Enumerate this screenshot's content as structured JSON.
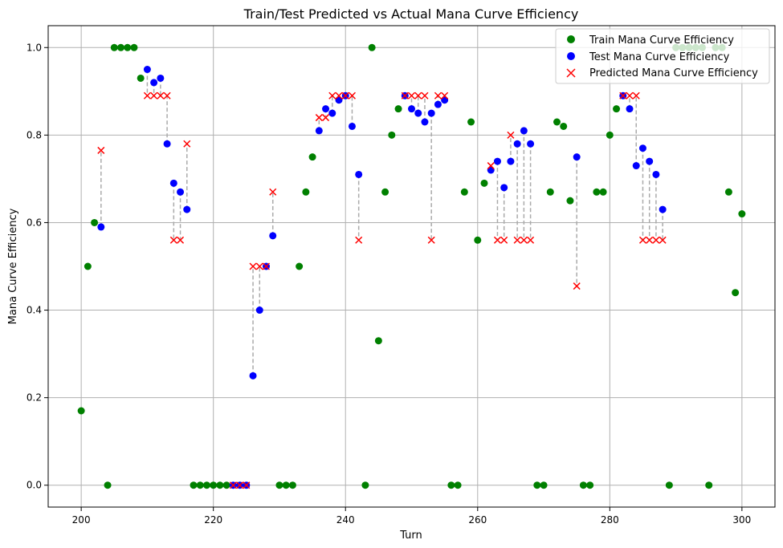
{
  "chart_data": {
    "type": "scatter",
    "title": "Train/Test Predicted vs Actual Mana Curve Efficiency",
    "xlabel": "Turn",
    "ylabel": "Mana Curve Efficiency",
    "xlim": [
      195,
      305
    ],
    "ylim": [
      -0.05,
      1.05
    ],
    "xticks": [
      200,
      220,
      240,
      260,
      280,
      300
    ],
    "yticks": [
      0.0,
      0.2,
      0.4,
      0.6,
      0.8,
      1.0
    ],
    "xtick_labels": [
      "200",
      "220",
      "240",
      "260",
      "280",
      "300"
    ],
    "ytick_labels": [
      "0.0",
      "0.2",
      "0.4",
      "0.6",
      "0.8",
      "1.0"
    ],
    "grid": true,
    "legend_position": "top-right",
    "colors": {
      "train": "#008000",
      "test": "#0000ff",
      "predicted": "#ff0000",
      "connector": "#aaaaaa",
      "grid": "#b0b0b0"
    },
    "series": [
      {
        "name": "Train Mana Curve Efficiency",
        "marker": "circle",
        "points": [
          [
            200,
            0.17
          ],
          [
            201,
            0.5
          ],
          [
            202,
            0.6
          ],
          [
            204,
            0.0
          ],
          [
            205,
            1.0
          ],
          [
            206,
            1.0
          ],
          [
            207,
            1.0
          ],
          [
            208,
            1.0
          ],
          [
            209,
            0.93
          ],
          [
            217,
            0.0
          ],
          [
            218,
            0.0
          ],
          [
            219,
            0.0
          ],
          [
            220,
            0.0
          ],
          [
            221,
            0.0
          ],
          [
            222,
            0.0
          ],
          [
            230,
            0.0
          ],
          [
            231,
            0.0
          ],
          [
            232,
            0.0
          ],
          [
            233,
            0.5
          ],
          [
            234,
            0.67
          ],
          [
            235,
            0.75
          ],
          [
            243,
            0.0
          ],
          [
            244,
            1.0
          ],
          [
            245,
            0.33
          ],
          [
            246,
            0.67
          ],
          [
            247,
            0.8
          ],
          [
            248,
            0.86
          ],
          [
            256,
            0.0
          ],
          [
            257,
            0.0
          ],
          [
            258,
            0.67
          ],
          [
            259,
            0.83
          ],
          [
            260,
            0.56
          ],
          [
            261,
            0.69
          ],
          [
            269,
            0.0
          ],
          [
            270,
            0.0
          ],
          [
            271,
            0.67
          ],
          [
            272,
            0.83
          ],
          [
            273,
            0.82
          ],
          [
            274,
            0.65
          ],
          [
            276,
            0.0
          ],
          [
            277,
            0.0
          ],
          [
            278,
            0.67
          ],
          [
            279,
            0.67
          ],
          [
            280,
            0.8
          ],
          [
            281,
            0.86
          ],
          [
            289,
            0.0
          ],
          [
            290,
            1.0
          ],
          [
            291,
            1.0
          ],
          [
            292,
            1.0
          ],
          [
            293,
            1.0
          ],
          [
            294,
            1.0
          ],
          [
            295,
            0.0
          ],
          [
            296,
            1.0
          ],
          [
            297,
            1.0
          ],
          [
            298,
            0.67
          ],
          [
            299,
            0.44
          ],
          [
            300,
            0.62
          ]
        ]
      },
      {
        "name": "Test Mana Curve Efficiency",
        "marker": "circle",
        "points": [
          [
            203,
            0.59
          ],
          [
            210,
            0.95
          ],
          [
            211,
            0.92
          ],
          [
            212,
            0.93
          ],
          [
            213,
            0.78
          ],
          [
            214,
            0.69
          ],
          [
            215,
            0.67
          ],
          [
            216,
            0.63
          ],
          [
            223,
            0.0
          ],
          [
            224,
            0.0
          ],
          [
            225,
            0.0
          ],
          [
            226,
            0.25
          ],
          [
            227,
            0.4
          ],
          [
            228,
            0.5
          ],
          [
            229,
            0.57
          ],
          [
            236,
            0.81
          ],
          [
            237,
            0.86
          ],
          [
            238,
            0.85
          ],
          [
            239,
            0.88
          ],
          [
            240,
            0.89
          ],
          [
            241,
            0.82
          ],
          [
            242,
            0.71
          ],
          [
            249,
            0.89
          ],
          [
            250,
            0.86
          ],
          [
            251,
            0.85
          ],
          [
            252,
            0.83
          ],
          [
            253,
            0.85
          ],
          [
            254,
            0.87
          ],
          [
            255,
            0.88
          ],
          [
            262,
            0.72
          ],
          [
            263,
            0.74
          ],
          [
            264,
            0.68
          ],
          [
            265,
            0.74
          ],
          [
            266,
            0.78
          ],
          [
            267,
            0.81
          ],
          [
            268,
            0.78
          ],
          [
            275,
            0.75
          ],
          [
            282,
            0.89
          ],
          [
            283,
            0.86
          ],
          [
            284,
            0.73
          ],
          [
            285,
            0.77
          ],
          [
            286,
            0.74
          ],
          [
            287,
            0.71
          ],
          [
            288,
            0.63
          ]
        ]
      },
      {
        "name": "Predicted Mana Curve Efficiency",
        "marker": "x",
        "points": [
          [
            203,
            0.765
          ],
          [
            210,
            0.89
          ],
          [
            211,
            0.89
          ],
          [
            212,
            0.89
          ],
          [
            213,
            0.89
          ],
          [
            214,
            0.56
          ],
          [
            215,
            0.56
          ],
          [
            216,
            0.78
          ],
          [
            223,
            0.0
          ],
          [
            224,
            0.0
          ],
          [
            225,
            0.0
          ],
          [
            226,
            0.5
          ],
          [
            227,
            0.5
          ],
          [
            228,
            0.5
          ],
          [
            229,
            0.67
          ],
          [
            236,
            0.84
          ],
          [
            237,
            0.84
          ],
          [
            238,
            0.89
          ],
          [
            239,
            0.89
          ],
          [
            240,
            0.89
          ],
          [
            241,
            0.89
          ],
          [
            242,
            0.56
          ],
          [
            249,
            0.89
          ],
          [
            250,
            0.89
          ],
          [
            251,
            0.89
          ],
          [
            252,
            0.89
          ],
          [
            253,
            0.56
          ],
          [
            254,
            0.89
          ],
          [
            255,
            0.89
          ],
          [
            262,
            0.73
          ],
          [
            263,
            0.56
          ],
          [
            264,
            0.56
          ],
          [
            265,
            0.8
          ],
          [
            266,
            0.56
          ],
          [
            267,
            0.56
          ],
          [
            268,
            0.56
          ],
          [
            275,
            0.455
          ],
          [
            282,
            0.89
          ],
          [
            283,
            0.89
          ],
          [
            284,
            0.89
          ],
          [
            285,
            0.56
          ],
          [
            286,
            0.56
          ],
          [
            287,
            0.56
          ],
          [
            288,
            0.56
          ]
        ]
      }
    ]
  }
}
